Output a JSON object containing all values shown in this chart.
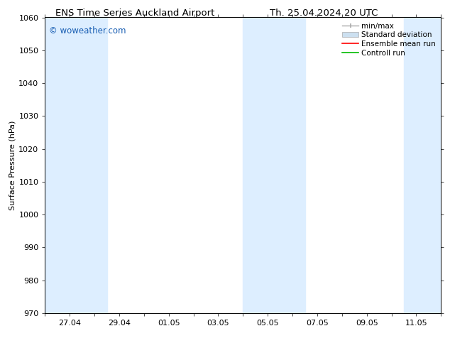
{
  "title_left": "ENS Time Series Auckland Airport",
  "title_right": "Th. 25.04.2024 20 UTC",
  "ylabel": "Surface Pressure (hPa)",
  "ylim": [
    970,
    1060
  ],
  "yticks": [
    970,
    980,
    990,
    1000,
    1010,
    1020,
    1030,
    1040,
    1050,
    1060
  ],
  "xlim_start": 0.0,
  "xlim_end": 16.0,
  "xtick_labels": [
    "27.04",
    "29.04",
    "01.05",
    "03.05",
    "05.05",
    "07.05",
    "09.05",
    "11.05"
  ],
  "xtick_positions": [
    1.0,
    3.0,
    5.0,
    7.0,
    9.0,
    11.0,
    13.0,
    15.0
  ],
  "minor_xtick_positions": [
    0,
    1,
    2,
    3,
    4,
    5,
    6,
    7,
    8,
    9,
    10,
    11,
    12,
    13,
    14,
    15,
    16
  ],
  "watermark": "© woweather.com",
  "watermark_color": "#1a5fb4",
  "bg_color": "#ffffff",
  "plot_bg_color": "#ffffff",
  "shaded_bands": [
    {
      "x_start": 0.0,
      "x_end": 2.5,
      "color": "#ddeeff"
    },
    {
      "x_start": 8.0,
      "x_end": 10.5,
      "color": "#ddeeff"
    },
    {
      "x_start": 14.5,
      "x_end": 16.0,
      "color": "#ddeeff"
    }
  ],
  "legend_labels": [
    "min/max",
    "Standard deviation",
    "Ensemble mean run",
    "Controll run"
  ],
  "legend_colors_line": [
    "#aaaaaa",
    "#ccddee",
    "#ff0000",
    "#00bb00"
  ],
  "font_family": "DejaVu Sans",
  "title_fontsize": 9.5,
  "ylabel_fontsize": 8,
  "tick_fontsize": 8,
  "legend_fontsize": 7.5
}
